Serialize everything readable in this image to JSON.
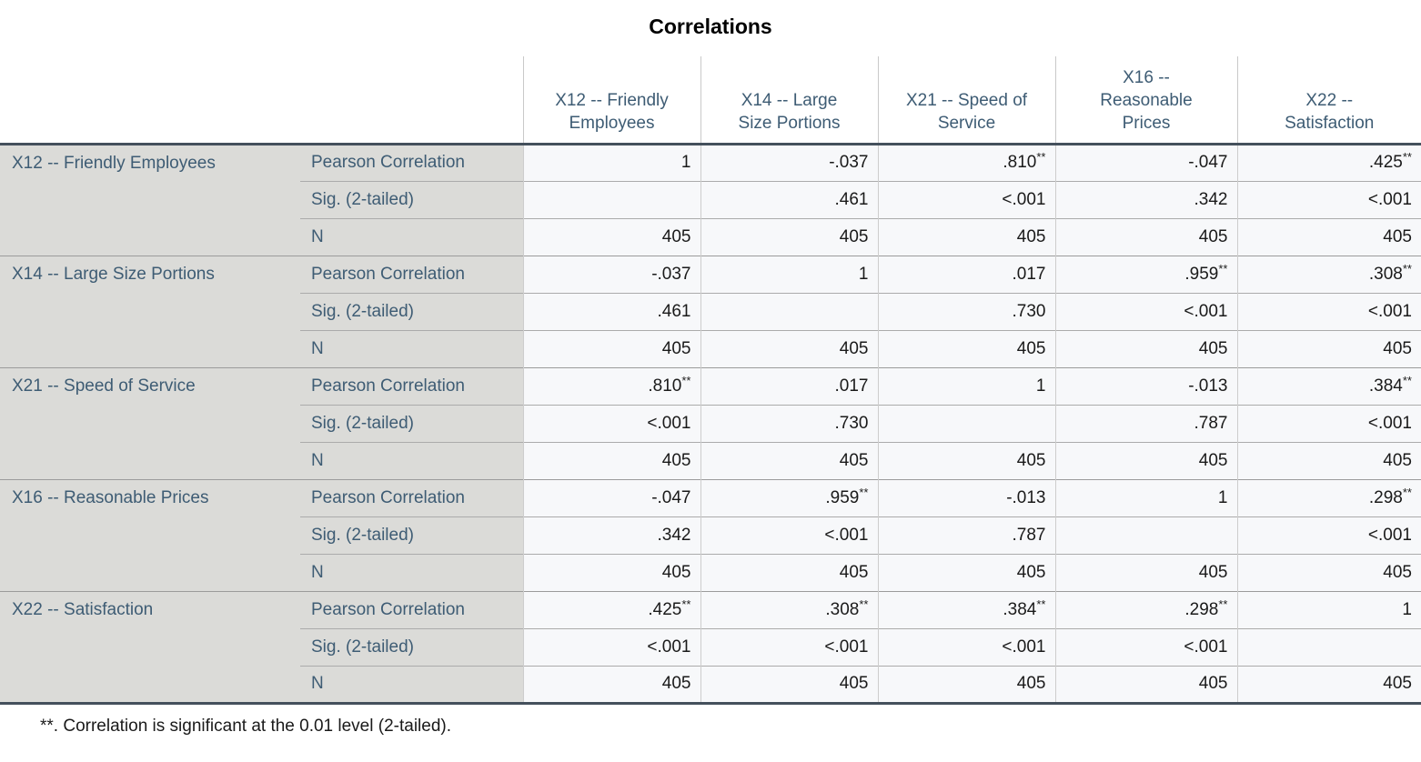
{
  "title": "Correlations",
  "colors": {
    "header_text": "#3e5c74",
    "stub_bg": "#dbdbd8",
    "cell_bg": "#f7f8fa",
    "border_dark": "#44505c",
    "grid_line": "#c9c9c9"
  },
  "table": {
    "col_headers": [
      {
        "label": "X12 -- Friendly Employees",
        "lines": [
          "X12 -- Friendly",
          "Employees"
        ]
      },
      {
        "label": "X14 -- Large Size Portions",
        "lines": [
          "X14 -- Large",
          "Size Portions"
        ]
      },
      {
        "label": "X21 -- Speed of Service",
        "lines": [
          "X21 -- Speed of",
          "Service"
        ]
      },
      {
        "label": "X16 -- Reasonable Prices",
        "lines": [
          "X16 --",
          "Reasonable",
          "Prices"
        ]
      },
      {
        "label": "X22 -- Satisfaction",
        "lines": [
          "X22 --",
          "Satisfaction"
        ]
      }
    ],
    "stat_labels": [
      "Pearson Correlation",
      "Sig. (2-tailed)",
      "N"
    ],
    "groups": [
      {
        "label": "X12 -- Friendly Employees",
        "rows": [
          [
            "1",
            "-.037",
            ".810**",
            "-.047",
            ".425**"
          ],
          [
            "",
            ".461",
            "<.001",
            ".342",
            "<.001"
          ],
          [
            "405",
            "405",
            "405",
            "405",
            "405"
          ]
        ]
      },
      {
        "label": "X14 -- Large Size Portions",
        "rows": [
          [
            "-.037",
            "1",
            ".017",
            ".959**",
            ".308**"
          ],
          [
            ".461",
            "",
            ".730",
            "<.001",
            "<.001"
          ],
          [
            "405",
            "405",
            "405",
            "405",
            "405"
          ]
        ]
      },
      {
        "label": "X21 -- Speed of Service",
        "rows": [
          [
            ".810**",
            ".017",
            "1",
            "-.013",
            ".384**"
          ],
          [
            "<.001",
            ".730",
            "",
            ".787",
            "<.001"
          ],
          [
            "405",
            "405",
            "405",
            "405",
            "405"
          ]
        ]
      },
      {
        "label": "X16 -- Reasonable Prices",
        "rows": [
          [
            "-.047",
            ".959**",
            "-.013",
            "1",
            ".298**"
          ],
          [
            ".342",
            "<.001",
            ".787",
            "",
            "<.001"
          ],
          [
            "405",
            "405",
            "405",
            "405",
            "405"
          ]
        ]
      },
      {
        "label": "X22 -- Satisfaction",
        "rows": [
          [
            ".425**",
            ".308**",
            ".384**",
            ".298**",
            "1"
          ],
          [
            "<.001",
            "<.001",
            "<.001",
            "<.001",
            ""
          ],
          [
            "405",
            "405",
            "405",
            "405",
            "405"
          ]
        ]
      }
    ],
    "footnote": "**. Correlation is significant at the 0.01 level (2-tailed)."
  }
}
